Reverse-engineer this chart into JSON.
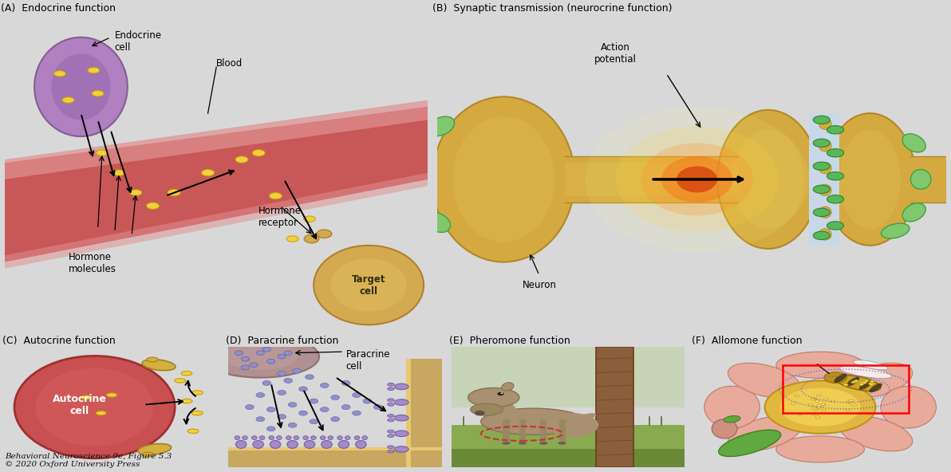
{
  "fig_width": 11.92,
  "fig_height": 5.92,
  "bg_color": "#d8d8d8",
  "panel_bg_AB": "#c8d8e8",
  "panel_bg_C": "#c8d8e8",
  "titles": {
    "A": "(A)  Endocrine function",
    "B": "(B)  Synaptic transmission (neurocrine function)",
    "C": "(C)  Autocrine function",
    "D": "(D)  Paracrine function",
    "E": "(E)  Pheromone function",
    "F": "(F)  Allomone function"
  },
  "caption": "Behavioral Neuroscience 9e, Figure 5.3\n© 2020 Oxford University Press",
  "hormone_color": "#f0d040",
  "hormone_outline": "#c8a800",
  "neuron_color": "#d4aa40",
  "vesicle_color": "#60b860",
  "autocrine_cell_color": "#c85050",
  "paracrine_mol_color": "#9090cc",
  "receptor_color": "#a880c0"
}
